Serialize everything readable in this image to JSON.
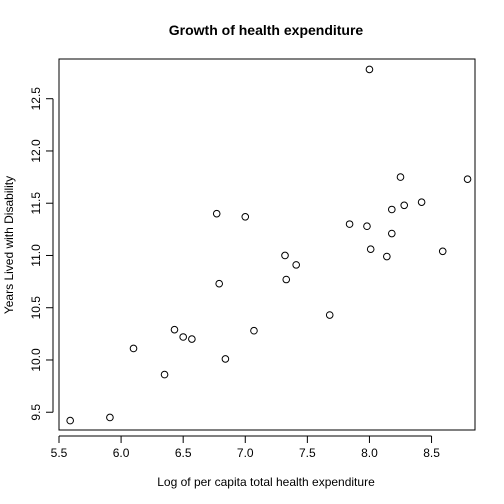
{
  "chart_data": {
    "type": "scatter",
    "title": "Growth of health expenditure",
    "xlabel": "Log of per capita total health expenditure",
    "ylabel": "Years Lived with Disability",
    "xlim": [
      5.5,
      8.85
    ],
    "ylim": [
      9.33,
      12.88
    ],
    "x_ticks": [
      "5.5",
      "6.0",
      "6.5",
      "7.0",
      "7.5",
      "8.0",
      "8.5"
    ],
    "y_ticks": [
      "9.5",
      "10.0",
      "10.5",
      "11.0",
      "11.5",
      "12.0",
      "12.5"
    ],
    "grid": false,
    "marker": "open-circle",
    "points": [
      {
        "x": 5.59,
        "y": 9.42
      },
      {
        "x": 5.91,
        "y": 9.45
      },
      {
        "x": 6.1,
        "y": 10.11
      },
      {
        "x": 6.35,
        "y": 9.86
      },
      {
        "x": 6.43,
        "y": 10.29
      },
      {
        "x": 6.5,
        "y": 10.22
      },
      {
        "x": 6.57,
        "y": 10.2
      },
      {
        "x": 6.77,
        "y": 11.4
      },
      {
        "x": 6.79,
        "y": 10.73
      },
      {
        "x": 6.84,
        "y": 10.01
      },
      {
        "x": 7.0,
        "y": 11.37
      },
      {
        "x": 7.07,
        "y": 10.28
      },
      {
        "x": 7.32,
        "y": 11.0
      },
      {
        "x": 7.33,
        "y": 10.77
      },
      {
        "x": 7.41,
        "y": 10.91
      },
      {
        "x": 7.68,
        "y": 10.43
      },
      {
        "x": 7.84,
        "y": 11.3
      },
      {
        "x": 7.98,
        "y": 11.28
      },
      {
        "x": 8.0,
        "y": 12.78
      },
      {
        "x": 8.01,
        "y": 11.06
      },
      {
        "x": 8.14,
        "y": 10.99
      },
      {
        "x": 8.18,
        "y": 11.44
      },
      {
        "x": 8.18,
        "y": 11.21
      },
      {
        "x": 8.25,
        "y": 11.75
      },
      {
        "x": 8.28,
        "y": 11.48
      },
      {
        "x": 8.42,
        "y": 11.51
      },
      {
        "x": 8.59,
        "y": 11.04
      },
      {
        "x": 8.79,
        "y": 11.73
      }
    ]
  }
}
